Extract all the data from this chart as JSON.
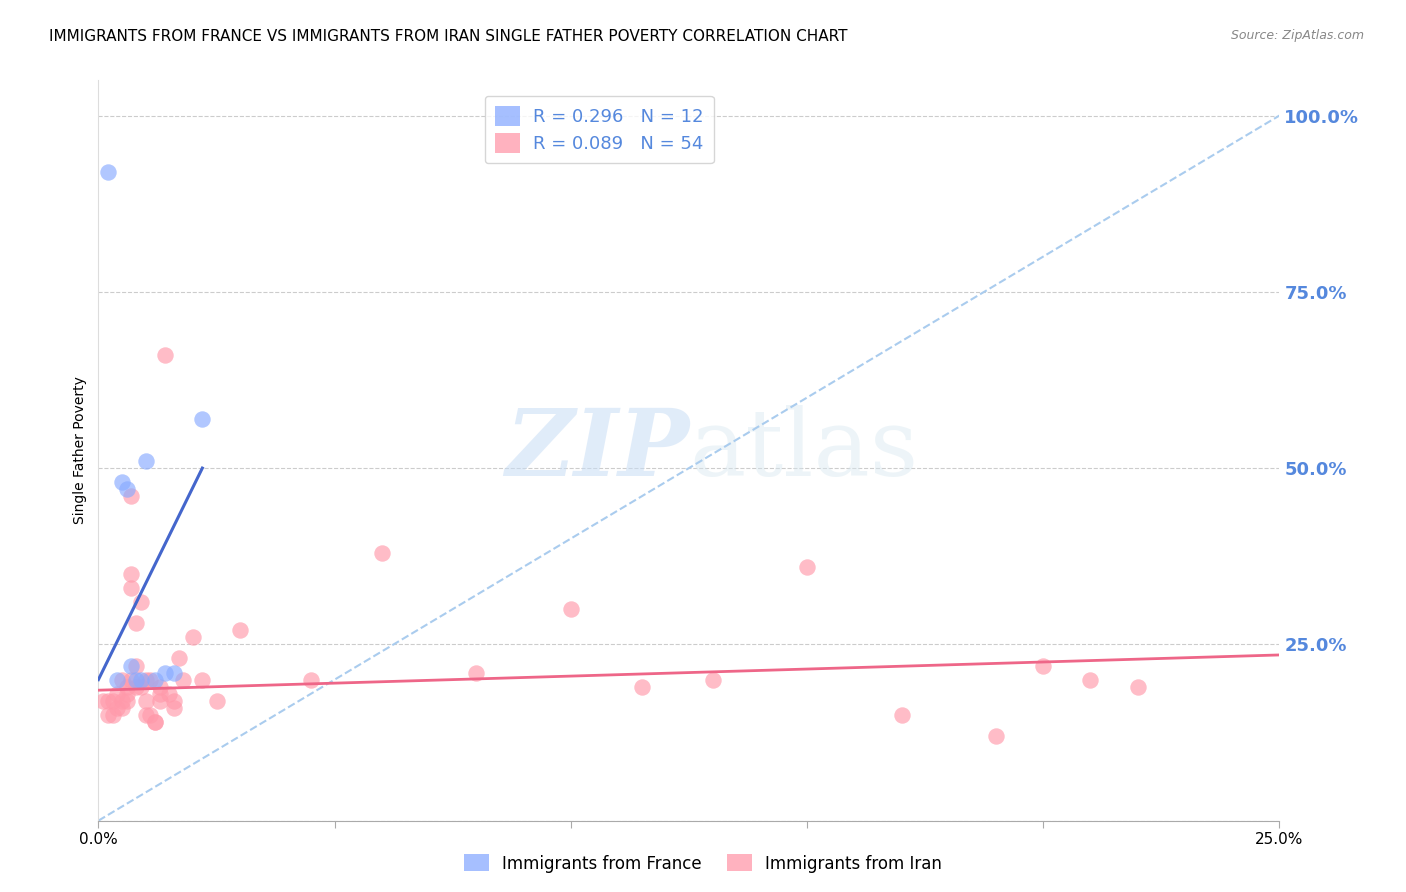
{
  "title": "IMMIGRANTS FROM FRANCE VS IMMIGRANTS FROM IRAN SINGLE FATHER POVERTY CORRELATION CHART",
  "source": "Source: ZipAtlas.com",
  "ylabel": "Single Father Poverty",
  "right_yticks": [
    "100.0%",
    "75.0%",
    "50.0%",
    "25.0%"
  ],
  "right_ytick_vals": [
    1.0,
    0.75,
    0.5,
    0.25
  ],
  "legend_france": "R = 0.296   N = 12",
  "legend_iran": "R = 0.089   N = 54",
  "france_color": "#88aaff",
  "iran_color": "#ff99aa",
  "france_line_color": "#4466cc",
  "iran_line_color": "#ee6688",
  "dashed_line_color": "#aaccee",
  "background_color": "#ffffff",
  "watermark_zip": "ZIP",
  "watermark_atlas": "atlas",
  "france_x": [
    0.002,
    0.004,
    0.005,
    0.006,
    0.007,
    0.008,
    0.009,
    0.01,
    0.012,
    0.014,
    0.016,
    0.022
  ],
  "france_y": [
    0.92,
    0.2,
    0.48,
    0.47,
    0.22,
    0.2,
    0.2,
    0.51,
    0.2,
    0.21,
    0.21,
    0.57
  ],
  "iran_x": [
    0.001,
    0.002,
    0.002,
    0.003,
    0.003,
    0.004,
    0.004,
    0.005,
    0.005,
    0.005,
    0.006,
    0.006,
    0.006,
    0.007,
    0.007,
    0.007,
    0.007,
    0.008,
    0.008,
    0.008,
    0.009,
    0.009,
    0.01,
    0.01,
    0.01,
    0.011,
    0.011,
    0.012,
    0.012,
    0.013,
    0.013,
    0.013,
    0.014,
    0.015,
    0.016,
    0.016,
    0.017,
    0.018,
    0.02,
    0.022,
    0.025,
    0.03,
    0.045,
    0.06,
    0.08,
    0.1,
    0.115,
    0.13,
    0.15,
    0.17,
    0.19,
    0.2,
    0.21,
    0.22
  ],
  "iran_y": [
    0.17,
    0.17,
    0.15,
    0.17,
    0.15,
    0.18,
    0.16,
    0.2,
    0.17,
    0.16,
    0.18,
    0.19,
    0.17,
    0.46,
    0.33,
    0.35,
    0.2,
    0.22,
    0.19,
    0.28,
    0.31,
    0.19,
    0.2,
    0.17,
    0.15,
    0.15,
    0.2,
    0.14,
    0.14,
    0.19,
    0.18,
    0.17,
    0.66,
    0.18,
    0.17,
    0.16,
    0.23,
    0.2,
    0.26,
    0.2,
    0.17,
    0.27,
    0.2,
    0.38,
    0.21,
    0.3,
    0.19,
    0.2,
    0.36,
    0.15,
    0.12,
    0.22,
    0.2,
    0.19
  ],
  "xlim": [
    0.0,
    0.25
  ],
  "ylim": [
    0.0,
    1.05
  ],
  "grid_color": "#cccccc",
  "title_fontsize": 11,
  "axis_label_fontsize": 10,
  "tick_fontsize": 11,
  "legend_fontsize": 12,
  "right_tick_color": "#5588dd",
  "france_line_x0": 0.0,
  "france_line_y0": 0.2,
  "france_line_x1": 0.022,
  "france_line_y1": 0.5,
  "iran_line_x0": 0.0,
  "iran_line_y0": 0.185,
  "iran_line_x1": 0.25,
  "iran_line_y1": 0.235
}
